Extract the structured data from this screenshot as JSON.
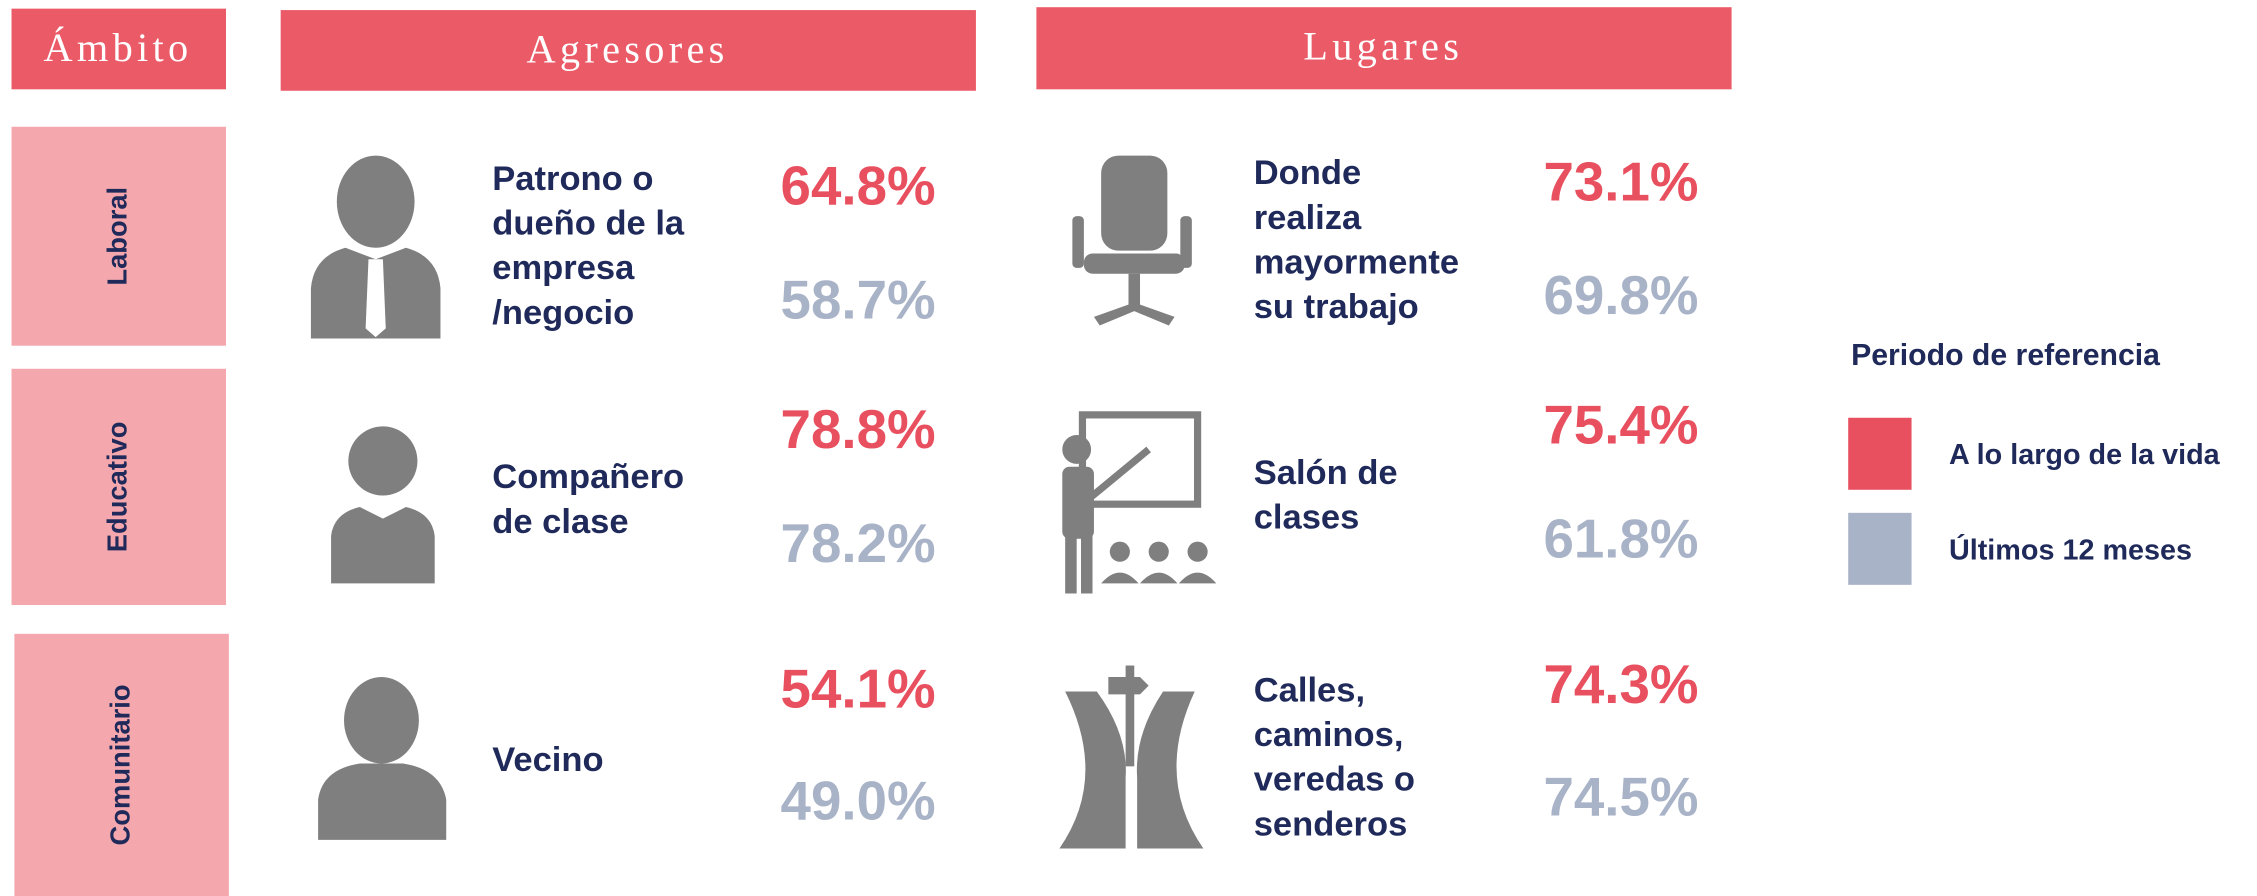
{
  "header": {
    "ambito": "Ámbito",
    "agresores": "Agresores",
    "lugares": "Lugares"
  },
  "rows": [
    {
      "ambito": "Laboral",
      "agresor": [
        "Patrono o",
        "dueño de la",
        "empresa",
        "/negocio"
      ],
      "agresor_vida": "64.8%",
      "agresor_12m": "58.7%",
      "lugar": [
        "Donde",
        "realiza",
        "mayormente",
        "su trabajo"
      ],
      "lugar_vida": "73.1%",
      "lugar_12m": "69.8%"
    },
    {
      "ambito": "Educativo",
      "agresor": [
        "Compañero",
        "de clase"
      ],
      "agresor_vida": "78.8%",
      "agresor_12m": "78.2%",
      "lugar": [
        "Salón de",
        "clases"
      ],
      "lugar_vida": "75.4%",
      "lugar_12m": "61.8%"
    },
    {
      "ambito": "Comunitario",
      "agresor": [
        "Vecino"
      ],
      "agresor_vida": "54.1%",
      "agresor_12m": "49.0%",
      "lugar": [
        "Calles,",
        "caminos,",
        "veredas o",
        "senderos"
      ],
      "lugar_vida": "74.3%",
      "lugar_12m": "74.5%"
    }
  ],
  "legend": {
    "title": "Periodo de referencia",
    "items": [
      {
        "label": "A lo largo de la vida",
        "color": "#e8505f"
      },
      {
        "label": "Últimos 12 meses",
        "color": "#a9b3c7"
      }
    ]
  }
}
